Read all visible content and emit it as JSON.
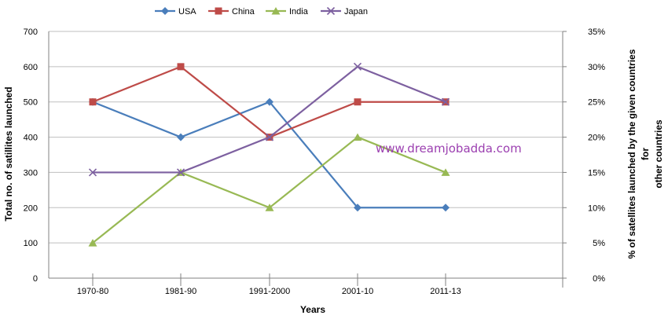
{
  "chart_data": {
    "type": "line",
    "categories": [
      "1970-80",
      "1981-90",
      "1991-2000",
      "2001-10",
      "2011-13"
    ],
    "series": [
      {
        "name": "USA",
        "axis": "left",
        "values": [
          500,
          400,
          500,
          200,
          200
        ],
        "color": "#4a7ebb",
        "marker": "diamond"
      },
      {
        "name": "China",
        "axis": "left",
        "values": [
          500,
          600,
          400,
          500,
          500
        ],
        "color": "#be4b48",
        "marker": "square"
      },
      {
        "name": "India",
        "axis": "right",
        "values": [
          5,
          15,
          10,
          20,
          15
        ],
        "color": "#98b954",
        "marker": "triangle"
      },
      {
        "name": "Japan",
        "axis": "right",
        "values": [
          15,
          15,
          20,
          30,
          25
        ],
        "color": "#7d60a0",
        "marker": "x"
      }
    ],
    "xlabel": "Years",
    "ylabel": "Total no. of satillites launched",
    "y2label_lines": [
      "% of satellites launched by the given countries",
      "for",
      "other countries"
    ],
    "ylim": [
      0,
      700
    ],
    "y_ticks": [
      "0",
      "100",
      "200",
      "300",
      "400",
      "500",
      "600",
      "700"
    ],
    "y2lim": [
      0,
      35
    ],
    "y2_ticks": [
      "0%",
      "5%",
      "10%",
      "15%",
      "20%",
      "25%",
      "30%",
      "35%"
    ],
    "grid": true,
    "legend_position": "top"
  },
  "watermark": {
    "text": "www.dreamjobadda.com",
    "color": "#9b3fb0"
  }
}
